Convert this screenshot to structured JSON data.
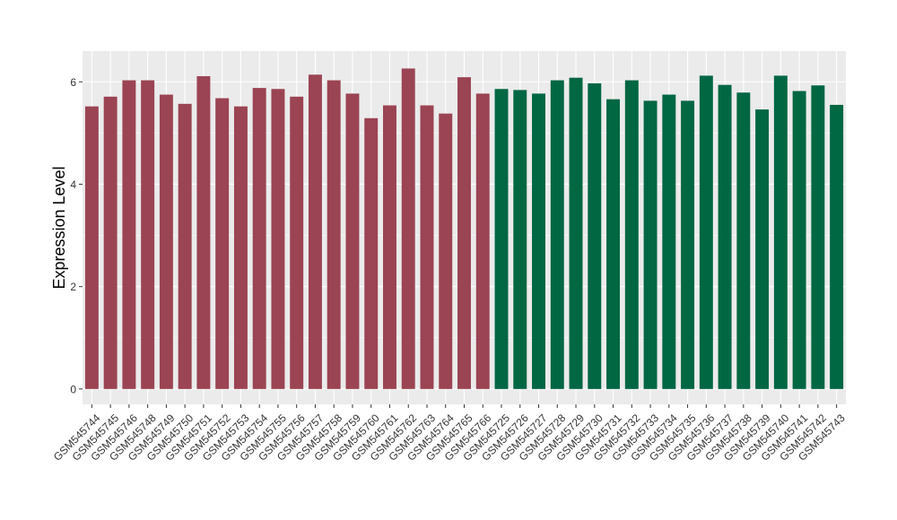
{
  "chart_data": {
    "type": "bar",
    "title": "",
    "xlabel": "",
    "ylabel": "Expression Level",
    "ylim": [
      -0.3,
      6.6
    ],
    "yticks": [
      0,
      2,
      4,
      6
    ],
    "ytick_labels": [
      "0",
      "2",
      "4",
      "6"
    ],
    "grid": true,
    "legend": "none",
    "background_color": "#EBEBEB",
    "gridline_color": "#FFFFFF",
    "categories": [
      "GSM545744",
      "GSM545745",
      "GSM545746",
      "GSM545748",
      "GSM545749",
      "GSM545750",
      "GSM545751",
      "GSM545752",
      "GSM545753",
      "GSM545754",
      "GSM545755",
      "GSM545756",
      "GSM545757",
      "GSM545758",
      "GSM545759",
      "GSM545760",
      "GSM545761",
      "GSM545762",
      "GSM545763",
      "GSM545764",
      "GSM545765",
      "GSM545766",
      "GSM545725",
      "GSM545726",
      "GSM545727",
      "GSM545728",
      "GSM545729",
      "GSM545730",
      "GSM545731",
      "GSM545732",
      "GSM545733",
      "GSM545734",
      "GSM545735",
      "GSM545736",
      "GSM545737",
      "GSM545738",
      "GSM545739",
      "GSM545740",
      "GSM545741",
      "GSM545742",
      "GSM545743"
    ],
    "values": [
      5.52,
      5.71,
      6.03,
      6.03,
      5.75,
      5.57,
      6.11,
      5.68,
      5.52,
      5.88,
      5.86,
      5.71,
      6.14,
      6.03,
      5.77,
      5.29,
      5.54,
      6.26,
      5.54,
      5.38,
      6.09,
      5.77,
      5.86,
      5.84,
      5.77,
      6.03,
      6.08,
      5.97,
      5.66,
      6.03,
      5.63,
      5.75,
      5.63,
      6.12,
      5.94,
      5.79,
      5.46,
      6.12,
      5.82,
      5.93,
      5.55
    ],
    "bar_colors": [
      "#9B4453",
      "#9B4453",
      "#9B4453",
      "#9B4453",
      "#9B4453",
      "#9B4453",
      "#9B4453",
      "#9B4453",
      "#9B4453",
      "#9B4453",
      "#9B4453",
      "#9B4453",
      "#9B4453",
      "#9B4453",
      "#9B4453",
      "#9B4453",
      "#9B4453",
      "#9B4453",
      "#9B4453",
      "#9B4453",
      "#9B4453",
      "#9B4453",
      "#006743",
      "#006743",
      "#006743",
      "#006743",
      "#006743",
      "#006743",
      "#006743",
      "#006743",
      "#006743",
      "#006743",
      "#006743",
      "#006743",
      "#006743",
      "#006743",
      "#006743",
      "#006743",
      "#006743",
      "#006743",
      "#006743"
    ]
  }
}
